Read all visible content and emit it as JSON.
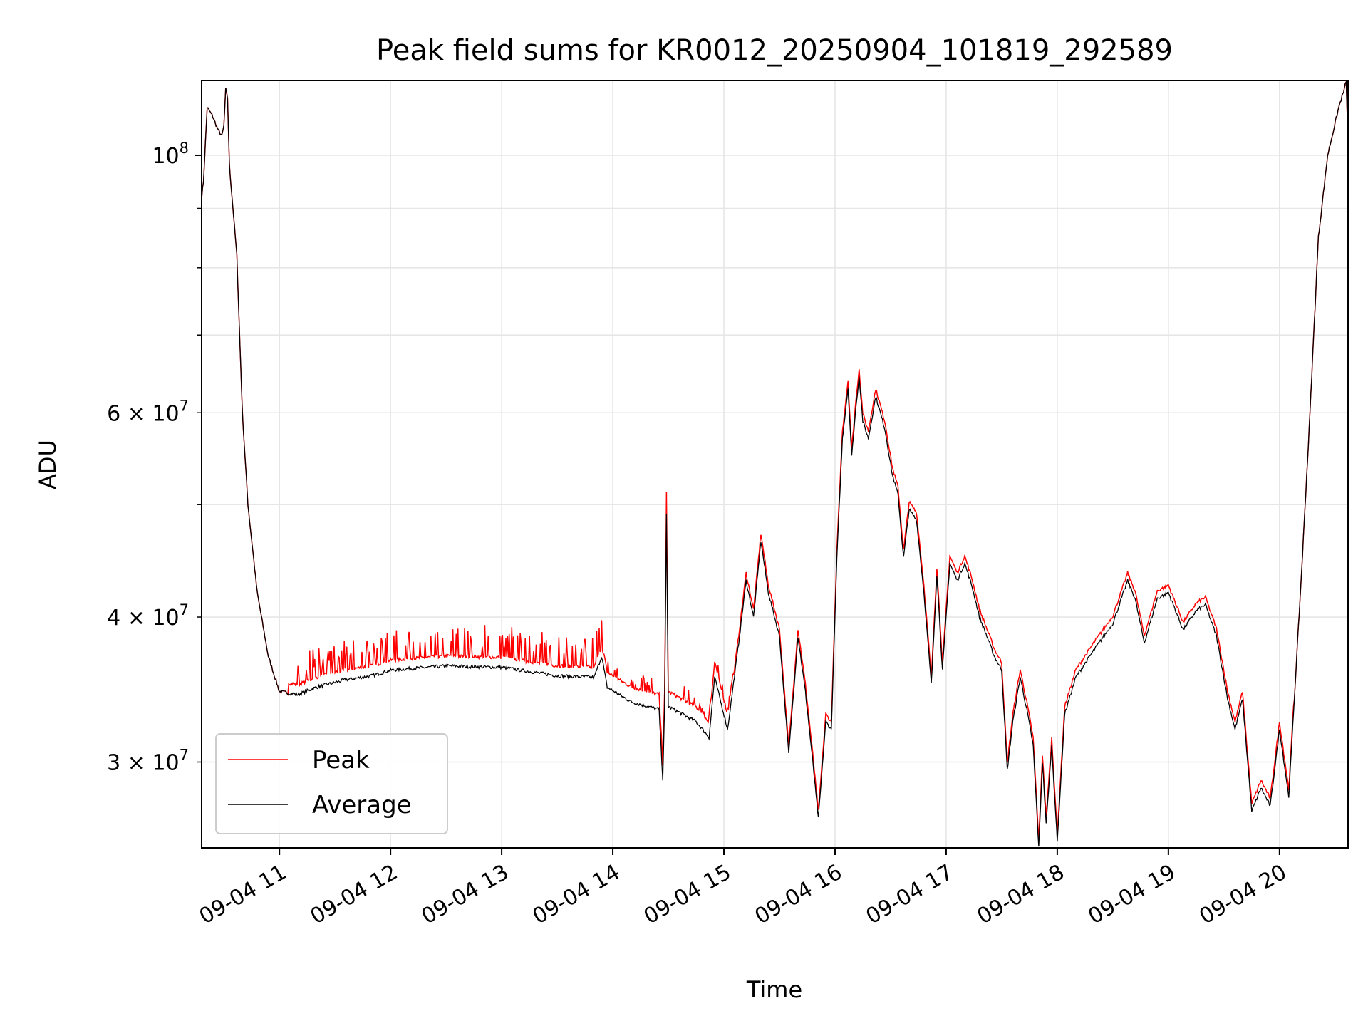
{
  "chart_data": {
    "type": "line",
    "title": "Peak field sums for KR0012_20250904_101819_292589",
    "xlabel": "Time",
    "ylabel": "ADU",
    "yscale": "log",
    "grid": true,
    "legend_position": "lower-left",
    "xlim": [
      "2025-09-04 10:18",
      "2025-09-04 20:37"
    ],
    "ylim": [
      25300000,
      116000000
    ],
    "x_ticks": [
      {
        "t": "2025-09-04 11:00",
        "label": "09-04 11"
      },
      {
        "t": "2025-09-04 12:00",
        "label": "09-04 12"
      },
      {
        "t": "2025-09-04 13:00",
        "label": "09-04 13"
      },
      {
        "t": "2025-09-04 14:00",
        "label": "09-04 14"
      },
      {
        "t": "2025-09-04 15:00",
        "label": "09-04 15"
      },
      {
        "t": "2025-09-04 16:00",
        "label": "09-04 16"
      },
      {
        "t": "2025-09-04 17:00",
        "label": "09-04 17"
      },
      {
        "t": "2025-09-04 18:00",
        "label": "09-04 18"
      },
      {
        "t": "2025-09-04 19:00",
        "label": "09-04 19"
      },
      {
        "t": "2025-09-04 20:00",
        "label": "09-04 20"
      }
    ],
    "y_major_ticks": [
      {
        "value": 100000000,
        "base": "10",
        "exp": "8"
      }
    ],
    "y_minor_ticks": [
      {
        "value": 30000000,
        "mant": "3",
        "base": "10",
        "exp": "7"
      },
      {
        "value": 40000000,
        "mant": "4",
        "base": "10",
        "exp": "7"
      },
      {
        "value": 50000000,
        "mant": "",
        "base": "",
        "exp": ""
      },
      {
        "value": 60000000,
        "mant": "6",
        "base": "10",
        "exp": "7"
      },
      {
        "value": 70000000,
        "mant": "",
        "base": "",
        "exp": ""
      },
      {
        "value": 80000000,
        "mant": "",
        "base": "",
        "exp": ""
      },
      {
        "value": 90000000,
        "mant": "",
        "base": "",
        "exp": ""
      }
    ],
    "times_sign": "×",
    "series": [
      {
        "name": "Peak",
        "color": "#ff0000"
      },
      {
        "name": "Average",
        "color": "#000000"
      }
    ],
    "average_points": [
      [
        "2025-09-04 10:18",
        92000000
      ],
      [
        "2025-09-04 10:19",
        95000000
      ],
      [
        "2025-09-04 10:21",
        110000000
      ],
      [
        "2025-09-04 10:24",
        108000000
      ],
      [
        "2025-09-04 10:27",
        105000000
      ],
      [
        "2025-09-04 10:29",
        104000000
      ],
      [
        "2025-09-04 10:30",
        106000000
      ],
      [
        "2025-09-04 10:31",
        114000000
      ],
      [
        "2025-09-04 10:32",
        112000000
      ],
      [
        "2025-09-04 10:33",
        98000000
      ],
      [
        "2025-09-04 10:37",
        82000000
      ],
      [
        "2025-09-04 10:40",
        60000000
      ],
      [
        "2025-09-04 10:43",
        50000000
      ],
      [
        "2025-09-04 10:48",
        42000000
      ],
      [
        "2025-09-04 10:54",
        37000000
      ],
      [
        "2025-09-04 11:00",
        34500000
      ],
      [
        "2025-09-04 11:10",
        34300000
      ],
      [
        "2025-09-04 11:20",
        34800000
      ],
      [
        "2025-09-04 11:35",
        35300000
      ],
      [
        "2025-09-04 11:50",
        35600000
      ],
      [
        "2025-09-04 12:00",
        36000000
      ],
      [
        "2025-09-04 12:30",
        36300000
      ],
      [
        "2025-09-04 13:00",
        36200000
      ],
      [
        "2025-09-04 13:30",
        35600000
      ],
      [
        "2025-09-04 13:50",
        35500000
      ],
      [
        "2025-09-04 13:54",
        37000000
      ],
      [
        "2025-09-04 13:57",
        34800000
      ],
      [
        "2025-09-04 14:10",
        33800000
      ],
      [
        "2025-09-04 14:25",
        33300000
      ],
      [
        "2025-09-04 14:27",
        29000000
      ],
      [
        "2025-09-04 14:28",
        33500000
      ],
      [
        "2025-09-04 14:29",
        49000000
      ],
      [
        "2025-09-04 14:30",
        33500000
      ],
      [
        "2025-09-04 14:45",
        32500000
      ],
      [
        "2025-09-04 14:52",
        31500000
      ],
      [
        "2025-09-04 14:55",
        35500000
      ],
      [
        "2025-09-04 15:02",
        32000000
      ],
      [
        "2025-09-04 15:08",
        38000000
      ],
      [
        "2025-09-04 15:12",
        43000000
      ],
      [
        "2025-09-04 15:16",
        40000000
      ],
      [
        "2025-09-04 15:20",
        46500000
      ],
      [
        "2025-09-04 15:24",
        42000000
      ],
      [
        "2025-09-04 15:30",
        38500000
      ],
      [
        "2025-09-04 15:35",
        30500000
      ],
      [
        "2025-09-04 15:40",
        38500000
      ],
      [
        "2025-09-04 15:44",
        34500000
      ],
      [
        "2025-09-04 15:48",
        30000000
      ],
      [
        "2025-09-04 15:51",
        26800000
      ],
      [
        "2025-09-04 15:55",
        32500000
      ],
      [
        "2025-09-04 15:58",
        32000000
      ],
      [
        "2025-09-04 16:01",
        45000000
      ],
      [
        "2025-09-04 16:04",
        57000000
      ],
      [
        "2025-09-04 16:07",
        63000000
      ],
      [
        "2025-09-04 16:09",
        55000000
      ],
      [
        "2025-09-04 16:11",
        60000000
      ],
      [
        "2025-09-04 16:13",
        64500000
      ],
      [
        "2025-09-04 16:15",
        59000000
      ],
      [
        "2025-09-04 16:18",
        57000000
      ],
      [
        "2025-09-04 16:22",
        62000000
      ],
      [
        "2025-09-04 16:27",
        58000000
      ],
      [
        "2025-09-04 16:31",
        53000000
      ],
      [
        "2025-09-04 16:34",
        51000000
      ],
      [
        "2025-09-04 16:37",
        45000000
      ],
      [
        "2025-09-04 16:40",
        49500000
      ],
      [
        "2025-09-04 16:44",
        48500000
      ],
      [
        "2025-09-04 16:48",
        42000000
      ],
      [
        "2025-09-04 16:52",
        35000000
      ],
      [
        "2025-09-04 16:55",
        43500000
      ],
      [
        "2025-09-04 16:58",
        36000000
      ],
      [
        "2025-09-04 17:02",
        44500000
      ],
      [
        "2025-09-04 17:06",
        43000000
      ],
      [
        "2025-09-04 17:10",
        44500000
      ],
      [
        "2025-09-04 17:14",
        42500000
      ],
      [
        "2025-09-04 17:18",
        40000000
      ],
      [
        "2025-09-04 17:22",
        38500000
      ],
      [
        "2025-09-04 17:26",
        37000000
      ],
      [
        "2025-09-04 17:30",
        36000000
      ],
      [
        "2025-09-04 17:33",
        29500000
      ],
      [
        "2025-09-04 17:36",
        32500000
      ],
      [
        "2025-09-04 17:40",
        35500000
      ],
      [
        "2025-09-04 17:44",
        33000000
      ],
      [
        "2025-09-04 17:47",
        31000000
      ],
      [
        "2025-09-04 17:50",
        25300000
      ],
      [
        "2025-09-04 17:52",
        30000000
      ],
      [
        "2025-09-04 17:54",
        26500000
      ],
      [
        "2025-09-04 17:57",
        31000000
      ],
      [
        "2025-09-04 18:00",
        25600000
      ],
      [
        "2025-09-04 18:04",
        33000000
      ],
      [
        "2025-09-04 18:10",
        35500000
      ],
      [
        "2025-09-04 18:20",
        37500000
      ],
      [
        "2025-09-04 18:30",
        39500000
      ],
      [
        "2025-09-04 18:38",
        43000000
      ],
      [
        "2025-09-04 18:42",
        41500000
      ],
      [
        "2025-09-04 18:47",
        38000000
      ],
      [
        "2025-09-04 18:54",
        41500000
      ],
      [
        "2025-09-04 19:00",
        42000000
      ],
      [
        "2025-09-04 19:08",
        39000000
      ],
      [
        "2025-09-04 19:15",
        40500000
      ],
      [
        "2025-09-04 19:20",
        41000000
      ],
      [
        "2025-09-04 19:26",
        38500000
      ],
      [
        "2025-09-04 19:32",
        34000000
      ],
      [
        "2025-09-04 19:36",
        32000000
      ],
      [
        "2025-09-04 19:40",
        34000000
      ],
      [
        "2025-09-04 19:45",
        27200000
      ],
      [
        "2025-09-04 19:50",
        28500000
      ],
      [
        "2025-09-04 19:55",
        27500000
      ],
      [
        "2025-09-04 20:00",
        32000000
      ],
      [
        "2025-09-04 20:05",
        28000000
      ],
      [
        "2025-09-04 20:08",
        34000000
      ],
      [
        "2025-09-04 20:12",
        44000000
      ],
      [
        "2025-09-04 20:16",
        58000000
      ],
      [
        "2025-09-04 20:21",
        85000000
      ],
      [
        "2025-09-04 20:26",
        100000000
      ],
      [
        "2025-09-04 20:32",
        110000000
      ],
      [
        "2025-09-04 20:35",
        114000000
      ],
      [
        "2025-09-04 20:36",
        116000000
      ],
      [
        "2025-09-04 20:37",
        102000000
      ]
    ],
    "peak_offsets": [
      {
        "from": "2025-09-04 11:05",
        "to": "2025-09-04 13:55",
        "ratio": 1.02
      },
      {
        "from": "2025-09-04 13:55",
        "to": "2025-09-04 15:05",
        "ratio": 1.03
      },
      {
        "from": "2025-09-04 15:05",
        "to": "2025-09-04 20:08",
        "ratio": 1.015
      }
    ]
  }
}
